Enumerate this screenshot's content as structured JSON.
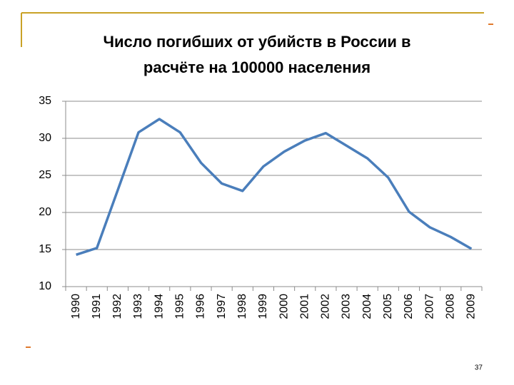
{
  "chart_data": {
    "type": "line",
    "title": [
      "Число погибших от убийств в России в",
      "расчёте на 100000 населения"
    ],
    "categories": [
      "1990",
      "1991",
      "1992",
      "1993",
      "1994",
      "1995",
      "1996",
      "1997",
      "1998",
      "1999",
      "2000",
      "2001",
      "2002",
      "2003",
      "2004",
      "2005",
      "2006",
      "2007",
      "2008",
      "2009"
    ],
    "series": [
      {
        "color": "#4a7ebb",
        "values": [
          14.3,
          15.2,
          23.0,
          30.8,
          32.6,
          30.8,
          26.7,
          23.9,
          22.9,
          26.2,
          28.2,
          29.7,
          30.7,
          29.0,
          27.3,
          24.7,
          20.1,
          18.0,
          16.7,
          15.1
        ]
      }
    ],
    "ylim": [
      10,
      35
    ],
    "yticks": [
      10,
      15,
      20,
      25,
      30,
      35
    ],
    "grid": true
  },
  "page_number": "37"
}
